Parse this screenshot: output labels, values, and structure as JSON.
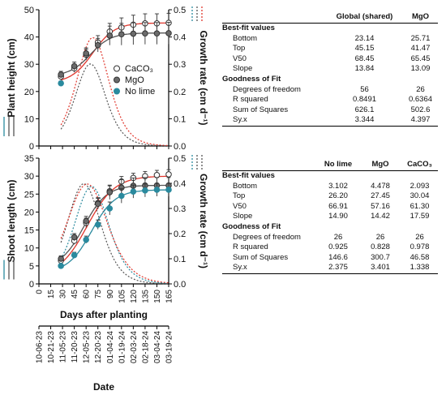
{
  "colors": {
    "caco3": "#ffffff",
    "mgo": "#6b6b6b",
    "nolime": "#2a8a9e",
    "fit_caco3": "#e0352b",
    "fit_mgo": "#555555",
    "fit_nolime": "#2a8a9e",
    "errorbar": "#333333"
  },
  "chart_data": [
    {
      "type": "scatter",
      "panel": "top",
      "xlabel": "Days after planting",
      "ylabel": "Plant height (cm)",
      "y2label": "Growth rate (cm d⁻¹)",
      "xlim": [
        0,
        165
      ],
      "ylim": [
        0,
        50
      ],
      "y2lim": [
        0,
        0.5
      ],
      "xticks": [
        "0",
        "15",
        "30",
        "45",
        "60",
        "75",
        "90",
        "105",
        "120",
        "135",
        "150",
        "165"
      ],
      "yticks": [
        "0",
        "10",
        "20",
        "30",
        "40",
        "50"
      ],
      "y2ticks": [
        "0.0",
        "0.1",
        "0.2",
        "0.3",
        "0.4",
        "0.5"
      ],
      "legend": {
        "placement": "center-right",
        "entries": [
          "CaCO₃",
          "MgO",
          "No lime"
        ]
      },
      "series": [
        {
          "name": "CaCO₃",
          "x": [
            28,
            45,
            60,
            75,
            90,
            105,
            120,
            135,
            150,
            165
          ],
          "y": [
            25.5,
            28.5,
            33.5,
            38,
            42,
            43.5,
            44.5,
            45,
            45,
            45.2
          ],
          "err": [
            1.2,
            1.5,
            2,
            2.5,
            3,
            3.5,
            3.5,
            3.5,
            3.5,
            3.5
          ]
        },
        {
          "name": "MgO",
          "x": [
            28,
            45,
            60,
            75,
            90,
            105,
            120,
            135,
            150,
            165
          ],
          "y": [
            26.2,
            29.3,
            34,
            37,
            40.5,
            41,
            41.2,
            41.3,
            41.3,
            41.4
          ],
          "err": [
            1.2,
            1.5,
            2,
            2.5,
            3.5,
            4,
            4,
            4,
            4,
            4
          ]
        },
        {
          "name": "No lime",
          "x": [
            28
          ],
          "y": [
            23
          ],
          "err": [
            0.8
          ]
        }
      ],
      "fits": [
        {
          "name": "CaCO₃",
          "bottom": 23.14,
          "top": 45.15,
          "v50": 68.45,
          "slope": 13.84
        },
        {
          "name": "MgO",
          "bottom": 25.71,
          "top": 41.47,
          "v50": 65.45,
          "slope": 13.09
        }
      ]
    },
    {
      "type": "scatter",
      "panel": "bottom",
      "xlabel": "Days after planting",
      "ylabel": "Shoot length (cm)",
      "y2label": "Growth rate (cm d⁻¹)",
      "x2label": "Date",
      "xlim": [
        0,
        165
      ],
      "ylim": [
        0,
        35
      ],
      "y2lim": [
        0,
        0.5
      ],
      "xticks": [
        "0",
        "15",
        "30",
        "45",
        "60",
        "75",
        "90",
        "105",
        "120",
        "135",
        "150",
        "165"
      ],
      "dateticks": [
        "10-06-23",
        "10-21-23",
        "11-05-23",
        "11-20-23",
        "12-05-23",
        "12-20-23",
        "01-04-24",
        "01-19-24",
        "02-03-24",
        "02-18-24",
        "03-04-24",
        "03-19-24"
      ],
      "yticks": [
        "0",
        "5",
        "10",
        "15",
        "20",
        "25",
        "30",
        "35"
      ],
      "y2ticks": [
        "0.0",
        "0.1",
        "0.2",
        "0.3",
        "0.4",
        "0.5"
      ],
      "series": [
        {
          "name": "CaCO₃",
          "x": [
            28,
            45,
            60,
            75,
            90,
            105,
            120,
            135,
            150,
            165
          ],
          "y": [
            6.5,
            12,
            17,
            22.5,
            25.8,
            28.5,
            29.5,
            30,
            30.3,
            30.5
          ],
          "err": [
            0.8,
            1,
            1.3,
            1.5,
            1.5,
            1.4,
            1.3,
            1.3,
            1.3,
            1.3
          ]
        },
        {
          "name": "MgO",
          "x": [
            28,
            45,
            60,
            75,
            90,
            105,
            120,
            135,
            150,
            165
          ],
          "y": [
            7,
            13,
            17.5,
            22.3,
            25.5,
            26.8,
            27.3,
            27.4,
            27.4,
            27.4
          ],
          "err": [
            0.8,
            1,
            1.3,
            1.5,
            2,
            2.2,
            2.2,
            2.2,
            2.2,
            2.2
          ]
        },
        {
          "name": "No lime",
          "x": [
            28,
            45,
            60,
            75,
            90,
            105,
            120,
            135,
            150,
            165
          ],
          "y": [
            5,
            8,
            12.3,
            16.5,
            21,
            24.5,
            25.7,
            26,
            26.2,
            26.2
          ],
          "err": [
            0.6,
            0.8,
            1,
            1.3,
            1.8,
            2,
            1.8,
            1.8,
            1.8,
            1.8
          ]
        }
      ],
      "fits": [
        {
          "name": "No lime",
          "bottom": 3.102,
          "top": 26.2,
          "v50": 66.91,
          "slope": 14.9
        },
        {
          "name": "MgO",
          "bottom": 4.478,
          "top": 27.45,
          "v50": 57.16,
          "slope": 14.42
        },
        {
          "name": "CaCO₃",
          "bottom": 2.093,
          "top": 30.04,
          "v50": 61.3,
          "slope": 17.59
        }
      ]
    }
  ],
  "table1": {
    "columns": [
      "Global (shared)",
      "MgO"
    ],
    "section1": "Best-fit values",
    "rows1": [
      {
        "label": "Bottom",
        "v": [
          "23.14",
          "25.71"
        ]
      },
      {
        "label": "Top",
        "v": [
          "45.15",
          "41.47"
        ]
      },
      {
        "label": "V50",
        "v": [
          "68.45",
          "65.45"
        ]
      },
      {
        "label": "Slope",
        "v": [
          "13.84",
          "13.09"
        ]
      }
    ],
    "section2": "Goodness of Fit",
    "rows2": [
      {
        "label": "Degrees of freedom",
        "v": [
          "56",
          "26"
        ]
      },
      {
        "label": "R squared",
        "v": [
          "0.8491",
          "0.6364"
        ]
      },
      {
        "label": "Sum of Squares",
        "v": [
          "626.1",
          "502.6"
        ]
      },
      {
        "label": "Sy.x",
        "v": [
          "3.344",
          "4.397"
        ]
      }
    ]
  },
  "table2": {
    "columns": [
      "No lime",
      "MgO",
      "CaCO₃"
    ],
    "section1": "Best-fit values",
    "rows1": [
      {
        "label": "Bottom",
        "v": [
          "3.102",
          "4.478",
          "2.093"
        ]
      },
      {
        "label": "Top",
        "v": [
          "26.20",
          "27.45",
          "30.04"
        ]
      },
      {
        "label": "V50",
        "v": [
          "66.91",
          "57.16",
          "61.30"
        ]
      },
      {
        "label": "Slope",
        "v": [
          "14.90",
          "14.42",
          "17.59"
        ]
      }
    ],
    "section2": "Goodness of Fit",
    "rows2": [
      {
        "label": "Degrees of freedom",
        "v": [
          "26",
          "26",
          "26"
        ]
      },
      {
        "label": "R squared",
        "v": [
          "0.925",
          "0.828",
          "0.978"
        ]
      },
      {
        "label": "Sum of Squares",
        "v": [
          "146.6",
          "300.7",
          "46.58"
        ]
      },
      {
        "label": "Sy.x",
        "v": [
          "2.375",
          "3.401",
          "1.338"
        ]
      }
    ]
  }
}
